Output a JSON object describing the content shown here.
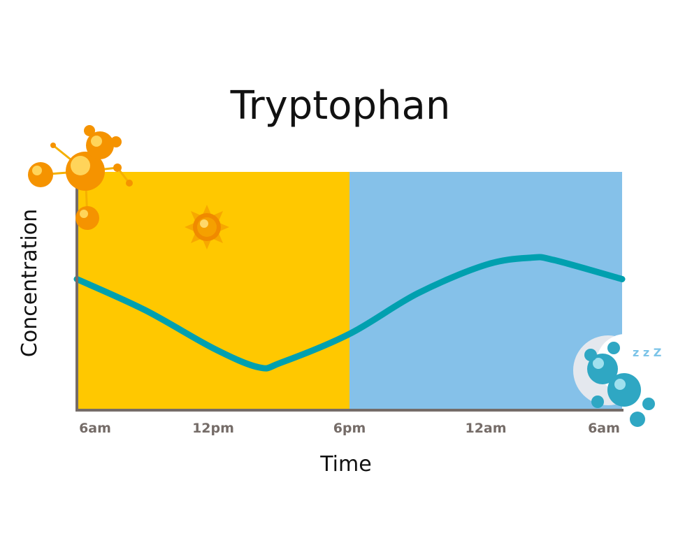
{
  "chart_data": {
    "type": "line",
    "title": "Tryptophan",
    "xlabel": "Time",
    "ylabel": "Concentration",
    "x_ticks": [
      "6am",
      "12pm",
      "6pm",
      "12am",
      "6am"
    ],
    "x": [
      "6am",
      "9am",
      "12pm",
      "2pm",
      "3pm",
      "6pm",
      "9pm",
      "12am",
      "2am",
      "3am",
      "6am"
    ],
    "series": [
      {
        "values": [
          0.55,
          0.42,
          0.26,
          0.18,
          0.2,
          0.32,
          0.49,
          0.61,
          0.64,
          0.63,
          0.55
        ]
      }
    ],
    "ylim": [
      0,
      1
    ],
    "y_ticks_shown": false,
    "grid": false,
    "regions": [
      {
        "name": "day",
        "from": "6am",
        "to": "6pm",
        "color": "#FFC800"
      },
      {
        "name": "night",
        "from": "6pm",
        "to": "6am",
        "color": "#85C1E9"
      }
    ],
    "line_color": "#00A0AF",
    "axis_color": "#756c68",
    "decorations": [
      "sun-icon",
      "awake-bear-molecule-icon",
      "sleeping-bear-moon-icon"
    ]
  }
}
